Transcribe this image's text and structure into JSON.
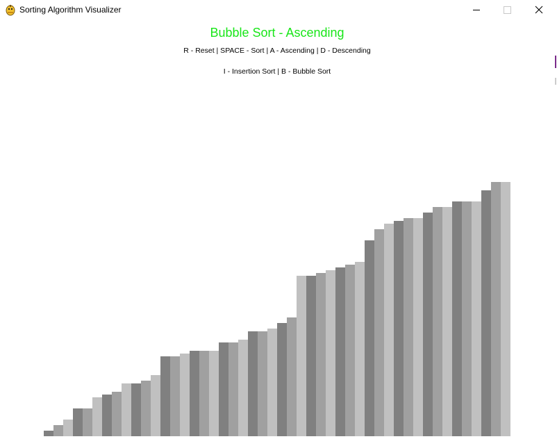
{
  "window": {
    "title": "Sorting Algorithm Visualizer",
    "icon": "python-snake-icon",
    "controls": [
      "minimize-icon",
      "maximize-icon",
      "close-icon"
    ]
  },
  "header": {
    "algorithm_title": "Bubble Sort - Ascending",
    "controls_line_1": "R - Reset | SPACE - Sort | A - Ascending | D - Descending",
    "controls_line_2": "I - Insertion Sort | B - Bubble Sort"
  },
  "colors": {
    "title": "#19e619",
    "bar_shades": [
      "#808080",
      "#a0a0a0",
      "#c0c0c0"
    ]
  },
  "chart_data": {
    "type": "bar",
    "order": "ascending",
    "values": [
      1,
      2,
      3,
      5,
      5,
      7,
      7.5,
      8,
      9.5,
      9.5,
      10,
      11,
      14.5,
      14.5,
      15,
      15.5,
      15.5,
      15.5,
      17,
      17,
      17.5,
      19,
      19,
      19.5,
      20.5,
      21.5,
      29,
      29,
      29.5,
      30,
      30.5,
      31,
      31.5,
      35.5,
      37.5,
      38.5,
      39,
      39.5,
      39.5,
      40.5,
      41.5,
      41.5,
      42.5,
      42.5,
      42.5,
      44.5,
      46,
      46
    ],
    "ylim": [
      0,
      46
    ]
  }
}
